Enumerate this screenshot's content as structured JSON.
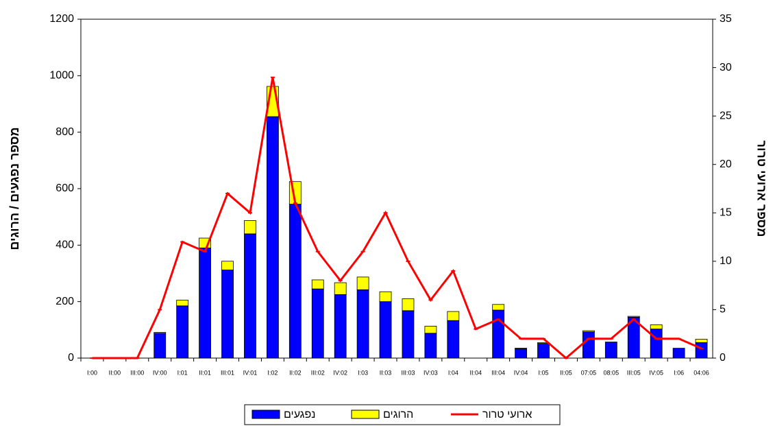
{
  "chart_data": {
    "type": "bar",
    "categories": [
      "I:00",
      "II:00",
      "III:00",
      "IV:00",
      "I:01",
      "II:01",
      "III:01",
      "IV:01",
      "I:02",
      "II:02",
      "III:02",
      "IV:02",
      "I:03",
      "II:03",
      "III:03",
      "IV:03",
      "I:04",
      "II:04",
      "III:04",
      "IV:04",
      "I:05",
      "II:05",
      "07:05",
      "08:05",
      "III:05",
      "IV:05",
      "I:06",
      "04:06"
    ],
    "series": [
      {
        "name": "נפגעים",
        "color": "#0000ff",
        "values": [
          0,
          0,
          0,
          88,
          185,
          390,
          312,
          440,
          855,
          545,
          245,
          225,
          242,
          200,
          168,
          88,
          133,
          0,
          170,
          33,
          52,
          0,
          93,
          57,
          145,
          103,
          35,
          55
        ]
      },
      {
        "name": "הרוגים",
        "color": "#ffff00",
        "values": [
          0,
          0,
          0,
          3,
          20,
          35,
          31,
          47,
          107,
          80,
          32,
          42,
          45,
          35,
          42,
          25,
          32,
          0,
          20,
          2,
          3,
          0,
          4,
          0,
          3,
          15,
          0,
          12
        ]
      },
      {
        "name": "ארועי טרור",
        "color": "#ff0000",
        "type": "line",
        "axis": "y2",
        "values": [
          0,
          0,
          0,
          5,
          12,
          11,
          17,
          15,
          29,
          16,
          11,
          8,
          11,
          15,
          10,
          6,
          9,
          3,
          4,
          2,
          2,
          0,
          2,
          2,
          4,
          2,
          2,
          1
        ]
      }
    ],
    "ylabel": "מספר נפגעים / הרוגים",
    "y2label": "מספר ארועי טרור",
    "ylim": [
      0,
      1200
    ],
    "yticks": [
      0,
      200,
      400,
      600,
      800,
      1000,
      1200
    ],
    "y2lim": [
      0,
      35
    ],
    "y2ticks": [
      0,
      5,
      10,
      15,
      20,
      25,
      30,
      35
    ],
    "stacked": true,
    "grid": false,
    "legend": "bottom"
  }
}
